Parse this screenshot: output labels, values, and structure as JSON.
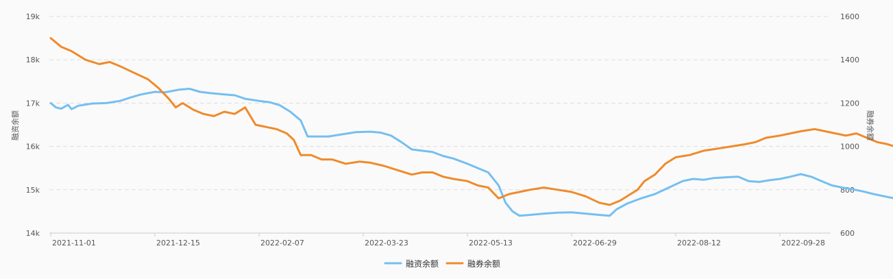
{
  "chart_data": {
    "type": "line",
    "title": "",
    "x_tick_labels": [
      "2021-11-01",
      "2021-12-15",
      "2022-02-07",
      "2022-03-23",
      "2022-05-13",
      "2022-06-29",
      "2022-08-12",
      "2022-09-28"
    ],
    "y_left": {
      "label": "融资余额",
      "ticks": [
        "14k",
        "15k",
        "16k",
        "17k",
        "18k",
        "19k"
      ],
      "range": [
        14000,
        19000
      ]
    },
    "y_right": {
      "label": "融券余额",
      "ticks": [
        "600",
        "800",
        "1000",
        "1200",
        "1400",
        "1600"
      ],
      "range": [
        600,
        1600
      ]
    },
    "grid": "horizontal dashed",
    "legend": "bottom-center",
    "series": [
      {
        "name": "融资余额",
        "axis": "left",
        "color": "#74bff0",
        "points": [
          [
            0,
            17000
          ],
          [
            0.15,
            16900
          ],
          [
            0.3,
            16870
          ],
          [
            0.5,
            16960
          ],
          [
            0.6,
            16860
          ],
          [
            0.8,
            16940
          ],
          [
            1.2,
            16990
          ],
          [
            1.6,
            17000
          ],
          [
            2.0,
            17050
          ],
          [
            2.3,
            17130
          ],
          [
            2.6,
            17200
          ],
          [
            3.0,
            17260
          ],
          [
            3.3,
            17250
          ],
          [
            3.7,
            17310
          ],
          [
            4.0,
            17330
          ],
          [
            4.3,
            17260
          ],
          [
            4.6,
            17230
          ],
          [
            5.0,
            17200
          ],
          [
            5.3,
            17180
          ],
          [
            5.6,
            17100
          ],
          [
            6.0,
            17050
          ],
          [
            6.3,
            17020
          ],
          [
            6.6,
            16950
          ],
          [
            6.9,
            16800
          ],
          [
            7.2,
            16600
          ],
          [
            7.4,
            16230
          ],
          [
            7.7,
            16230
          ],
          [
            8.0,
            16230
          ],
          [
            8.4,
            16280
          ],
          [
            8.8,
            16330
          ],
          [
            9.2,
            16340
          ],
          [
            9.5,
            16320
          ],
          [
            9.8,
            16250
          ],
          [
            10.1,
            16100
          ],
          [
            10.4,
            15930
          ],
          [
            10.7,
            15900
          ],
          [
            11.0,
            15870
          ],
          [
            11.3,
            15780
          ],
          [
            11.6,
            15720
          ],
          [
            12.0,
            15600
          ],
          [
            12.3,
            15500
          ],
          [
            12.6,
            15400
          ],
          [
            12.9,
            15100
          ],
          [
            13.1,
            14700
          ],
          [
            13.3,
            14500
          ],
          [
            13.5,
            14400
          ],
          [
            13.8,
            14420
          ],
          [
            14.2,
            14450
          ],
          [
            14.6,
            14470
          ],
          [
            15.0,
            14480
          ],
          [
            15.4,
            14450
          ],
          [
            15.8,
            14420
          ],
          [
            16.1,
            14400
          ],
          [
            16.3,
            14550
          ],
          [
            16.6,
            14680
          ],
          [
            17.0,
            14800
          ],
          [
            17.4,
            14900
          ],
          [
            17.8,
            15050
          ],
          [
            18.2,
            15200
          ],
          [
            18.5,
            15250
          ],
          [
            18.8,
            15230
          ],
          [
            19.1,
            15270
          ],
          [
            19.5,
            15290
          ],
          [
            19.8,
            15300
          ],
          [
            20.1,
            15200
          ],
          [
            20.4,
            15180
          ],
          [
            20.7,
            15220
          ],
          [
            21.0,
            15250
          ],
          [
            21.3,
            15300
          ],
          [
            21.6,
            15360
          ],
          [
            21.9,
            15300
          ],
          [
            22.2,
            15200
          ],
          [
            22.5,
            15100
          ],
          [
            22.8,
            15050
          ],
          [
            23.1,
            15010
          ],
          [
            23.4,
            14960
          ],
          [
            23.7,
            14900
          ],
          [
            24.0,
            14850
          ],
          [
            24.3,
            14800
          ],
          [
            24.5,
            14700
          ],
          [
            24.7,
            14450
          ],
          [
            25.0,
            14450
          ],
          [
            25.4,
            14460
          ],
          [
            25.8,
            14500
          ],
          [
            26.1,
            14490
          ],
          [
            26.4,
            14520
          ],
          [
            26.6,
            14500
          ],
          [
            26.75,
            14420
          ]
        ]
      },
      {
        "name": "融券余额",
        "axis": "right",
        "color": "#f08a2a",
        "points": [
          [
            0,
            1500
          ],
          [
            0.3,
            1460
          ],
          [
            0.6,
            1440
          ],
          [
            1.0,
            1400
          ],
          [
            1.4,
            1380
          ],
          [
            1.7,
            1390
          ],
          [
            2.0,
            1370
          ],
          [
            2.4,
            1340
          ],
          [
            2.8,
            1310
          ],
          [
            3.1,
            1270
          ],
          [
            3.4,
            1220
          ],
          [
            3.6,
            1180
          ],
          [
            3.8,
            1200
          ],
          [
            4.1,
            1170
          ],
          [
            4.4,
            1150
          ],
          [
            4.7,
            1140
          ],
          [
            5.0,
            1160
          ],
          [
            5.3,
            1150
          ],
          [
            5.6,
            1180
          ],
          [
            5.9,
            1100
          ],
          [
            6.2,
            1090
          ],
          [
            6.5,
            1080
          ],
          [
            6.8,
            1060
          ],
          [
            7.0,
            1030
          ],
          [
            7.2,
            960
          ],
          [
            7.5,
            960
          ],
          [
            7.8,
            940
          ],
          [
            8.1,
            940
          ],
          [
            8.5,
            920
          ],
          [
            8.9,
            930
          ],
          [
            9.2,
            925
          ],
          [
            9.6,
            910
          ],
          [
            10.0,
            890
          ],
          [
            10.4,
            870
          ],
          [
            10.7,
            880
          ],
          [
            11.0,
            880
          ],
          [
            11.3,
            860
          ],
          [
            11.6,
            850
          ],
          [
            12.0,
            840
          ],
          [
            12.3,
            820
          ],
          [
            12.6,
            810
          ],
          [
            12.9,
            760
          ],
          [
            13.2,
            780
          ],
          [
            13.5,
            790
          ],
          [
            13.8,
            800
          ],
          [
            14.2,
            810
          ],
          [
            14.6,
            800
          ],
          [
            15.0,
            790
          ],
          [
            15.4,
            770
          ],
          [
            15.8,
            740
          ],
          [
            16.1,
            730
          ],
          [
            16.4,
            750
          ],
          [
            16.7,
            780
          ],
          [
            16.9,
            800
          ],
          [
            17.1,
            840
          ],
          [
            17.4,
            870
          ],
          [
            17.7,
            920
          ],
          [
            18.0,
            950
          ],
          [
            18.4,
            960
          ],
          [
            18.8,
            980
          ],
          [
            19.2,
            990
          ],
          [
            19.6,
            1000
          ],
          [
            20.0,
            1010
          ],
          [
            20.3,
            1020
          ],
          [
            20.6,
            1040
          ],
          [
            21.0,
            1050
          ],
          [
            21.3,
            1060
          ],
          [
            21.6,
            1070
          ],
          [
            22.0,
            1080
          ],
          [
            22.3,
            1070
          ],
          [
            22.6,
            1060
          ],
          [
            22.9,
            1050
          ],
          [
            23.2,
            1060
          ],
          [
            23.5,
            1040
          ],
          [
            23.8,
            1020
          ],
          [
            24.1,
            1010
          ],
          [
            24.3,
            1000
          ],
          [
            24.6,
            980
          ],
          [
            24.9,
            960
          ],
          [
            25.1,
            920
          ],
          [
            25.3,
            940
          ],
          [
            25.6,
            1000
          ],
          [
            25.9,
            1020
          ],
          [
            26.2,
            1030
          ],
          [
            26.5,
            1040
          ],
          [
            26.7,
            1050
          ],
          [
            26.75,
            1030
          ]
        ]
      }
    ]
  }
}
